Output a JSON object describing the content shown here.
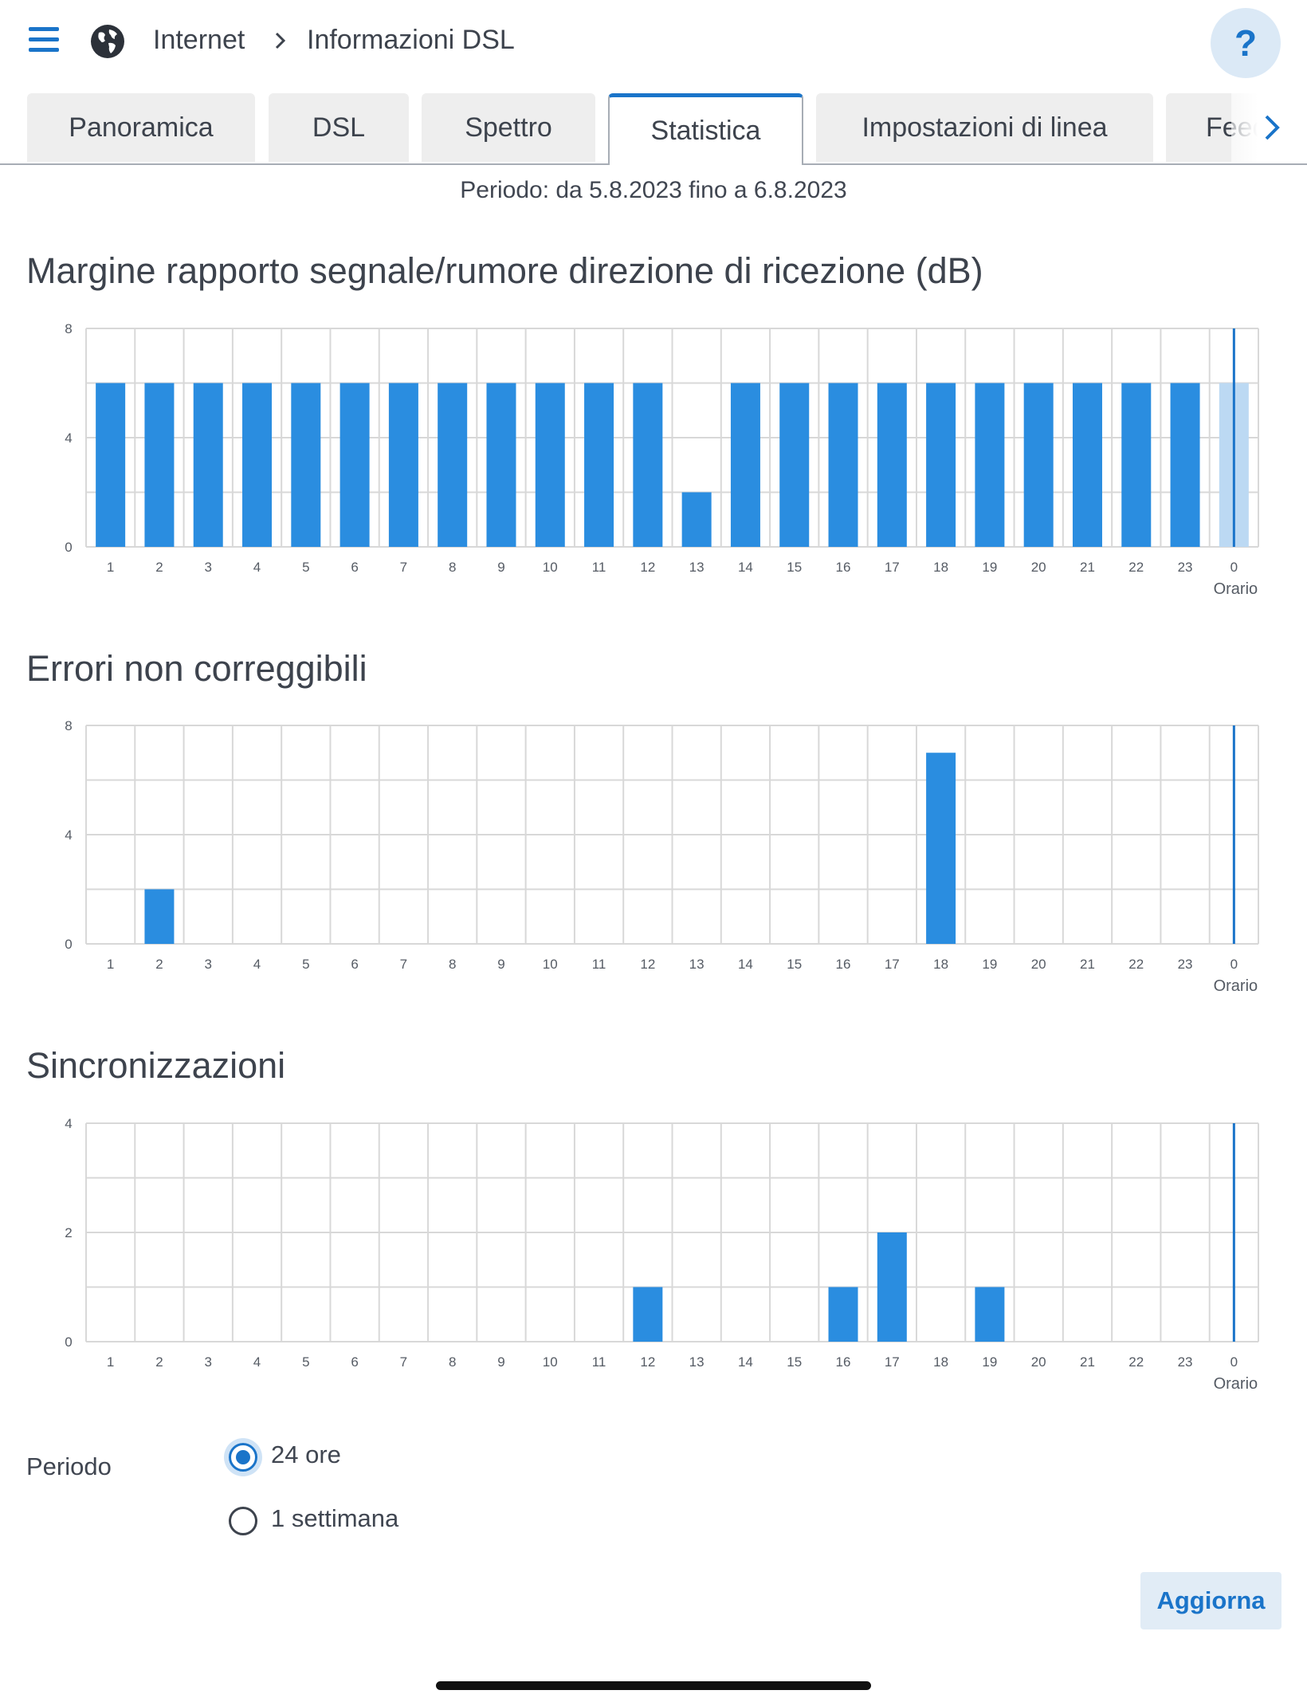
{
  "header": {
    "menu_icon": "hamburger-menu-icon",
    "globe_icon": "globe-icon",
    "breadcrumb": [
      "Internet",
      "Informazioni DSL"
    ],
    "help_label": "?"
  },
  "tabs": [
    {
      "label": "Panoramica",
      "active": false
    },
    {
      "label": "DSL",
      "active": false
    },
    {
      "label": "Spettro",
      "active": false
    },
    {
      "label": "Statistica",
      "active": true
    },
    {
      "label": "Impostazioni di linea",
      "active": false
    },
    {
      "label": "Feedback",
      "active": false
    }
  ],
  "period_text": "Periodo: da 5.8.2023 fino a 6.8.2023",
  "colors": {
    "accent": "#1a74c9",
    "bar": "#2a8de0",
    "bar_light": "#bcd9f3",
    "grid": "#d8d8d8",
    "now_line": "#1a74c9"
  },
  "chart_data": [
    {
      "type": "bar",
      "title": "Margine rapporto segnale/rumore direzione di ricezione (dB)",
      "xlabel": "Orario",
      "categories": [
        "1",
        "2",
        "3",
        "4",
        "5",
        "6",
        "7",
        "8",
        "9",
        "10",
        "11",
        "12",
        "13",
        "14",
        "15",
        "16",
        "17",
        "18",
        "19",
        "20",
        "21",
        "22",
        "23",
        "0"
      ],
      "values": [
        6,
        6,
        6,
        6,
        6,
        6,
        6,
        6,
        6,
        6,
        6,
        6,
        2,
        6,
        6,
        6,
        6,
        6,
        6,
        6,
        6,
        6,
        6,
        6
      ],
      "current_hour": "0",
      "ylim": [
        0,
        8
      ],
      "yticks": [
        0,
        4,
        8
      ],
      "grid": true
    },
    {
      "type": "bar",
      "title": "Errori non correggibili",
      "xlabel": "Orario",
      "categories": [
        "1",
        "2",
        "3",
        "4",
        "5",
        "6",
        "7",
        "8",
        "9",
        "10",
        "11",
        "12",
        "13",
        "14",
        "15",
        "16",
        "17",
        "18",
        "19",
        "20",
        "21",
        "22",
        "23",
        "0"
      ],
      "values": [
        0,
        2,
        0,
        0,
        0,
        0,
        0,
        0,
        0,
        0,
        0,
        0,
        0,
        0,
        0,
        0,
        0,
        7,
        0,
        0,
        0,
        0,
        0,
        0
      ],
      "current_hour": "0",
      "ylim": [
        0,
        8
      ],
      "yticks": [
        0,
        4,
        8
      ],
      "grid": true
    },
    {
      "type": "bar",
      "title": "Sincronizzazioni",
      "xlabel": "Orario",
      "categories": [
        "1",
        "2",
        "3",
        "4",
        "5",
        "6",
        "7",
        "8",
        "9",
        "10",
        "11",
        "12",
        "13",
        "14",
        "15",
        "16",
        "17",
        "18",
        "19",
        "20",
        "21",
        "22",
        "23",
        "0"
      ],
      "values": [
        0,
        0,
        0,
        0,
        0,
        0,
        0,
        0,
        0,
        0,
        0,
        1,
        0,
        0,
        0,
        1,
        2,
        0,
        1,
        0,
        0,
        0,
        0,
        0
      ],
      "current_hour": "0",
      "ylim": [
        0,
        4
      ],
      "yticks": [
        0,
        2,
        4
      ],
      "grid": true
    }
  ],
  "period": {
    "label": "Periodo",
    "options": [
      {
        "label": "24 ore",
        "selected": true
      },
      {
        "label": "1 settimana",
        "selected": false
      }
    ]
  },
  "refresh_label": "Aggiorna"
}
